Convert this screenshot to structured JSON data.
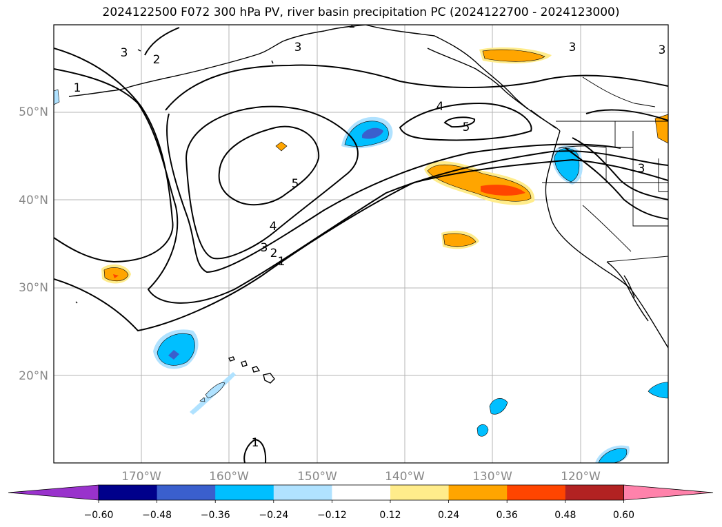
{
  "title": "2024122500 F072 300 hPa PV, river basin precipitation PC (2024122700 - 2024123000)",
  "map": {
    "lon_ticks": [
      "170°W",
      "160°W",
      "150°W",
      "140°W",
      "130°W",
      "120°W"
    ],
    "lat_ticks": [
      "50°N",
      "40°N",
      "30°N",
      "20°N"
    ],
    "pv_contour_labels": [
      "1",
      "2",
      "3",
      "3",
      "4",
      "5",
      "4",
      "5",
      "3",
      "3",
      "3",
      "2",
      "1",
      "1",
      "1",
      "3"
    ]
  },
  "colorbar": {
    "ticks": [
      "−0.60",
      "−0.48",
      "−0.36",
      "−0.24",
      "−0.12",
      "0.12",
      "0.24",
      "0.36",
      "0.48",
      "0.60"
    ],
    "colors": [
      "#9932cc",
      "#00008b",
      "#3a5fcd",
      "#00bfff",
      "#b0e2ff",
      "#ffffff",
      "#ffec8b",
      "#ffa500",
      "#ff4500",
      "#b22222",
      "#ff82ab"
    ]
  }
}
